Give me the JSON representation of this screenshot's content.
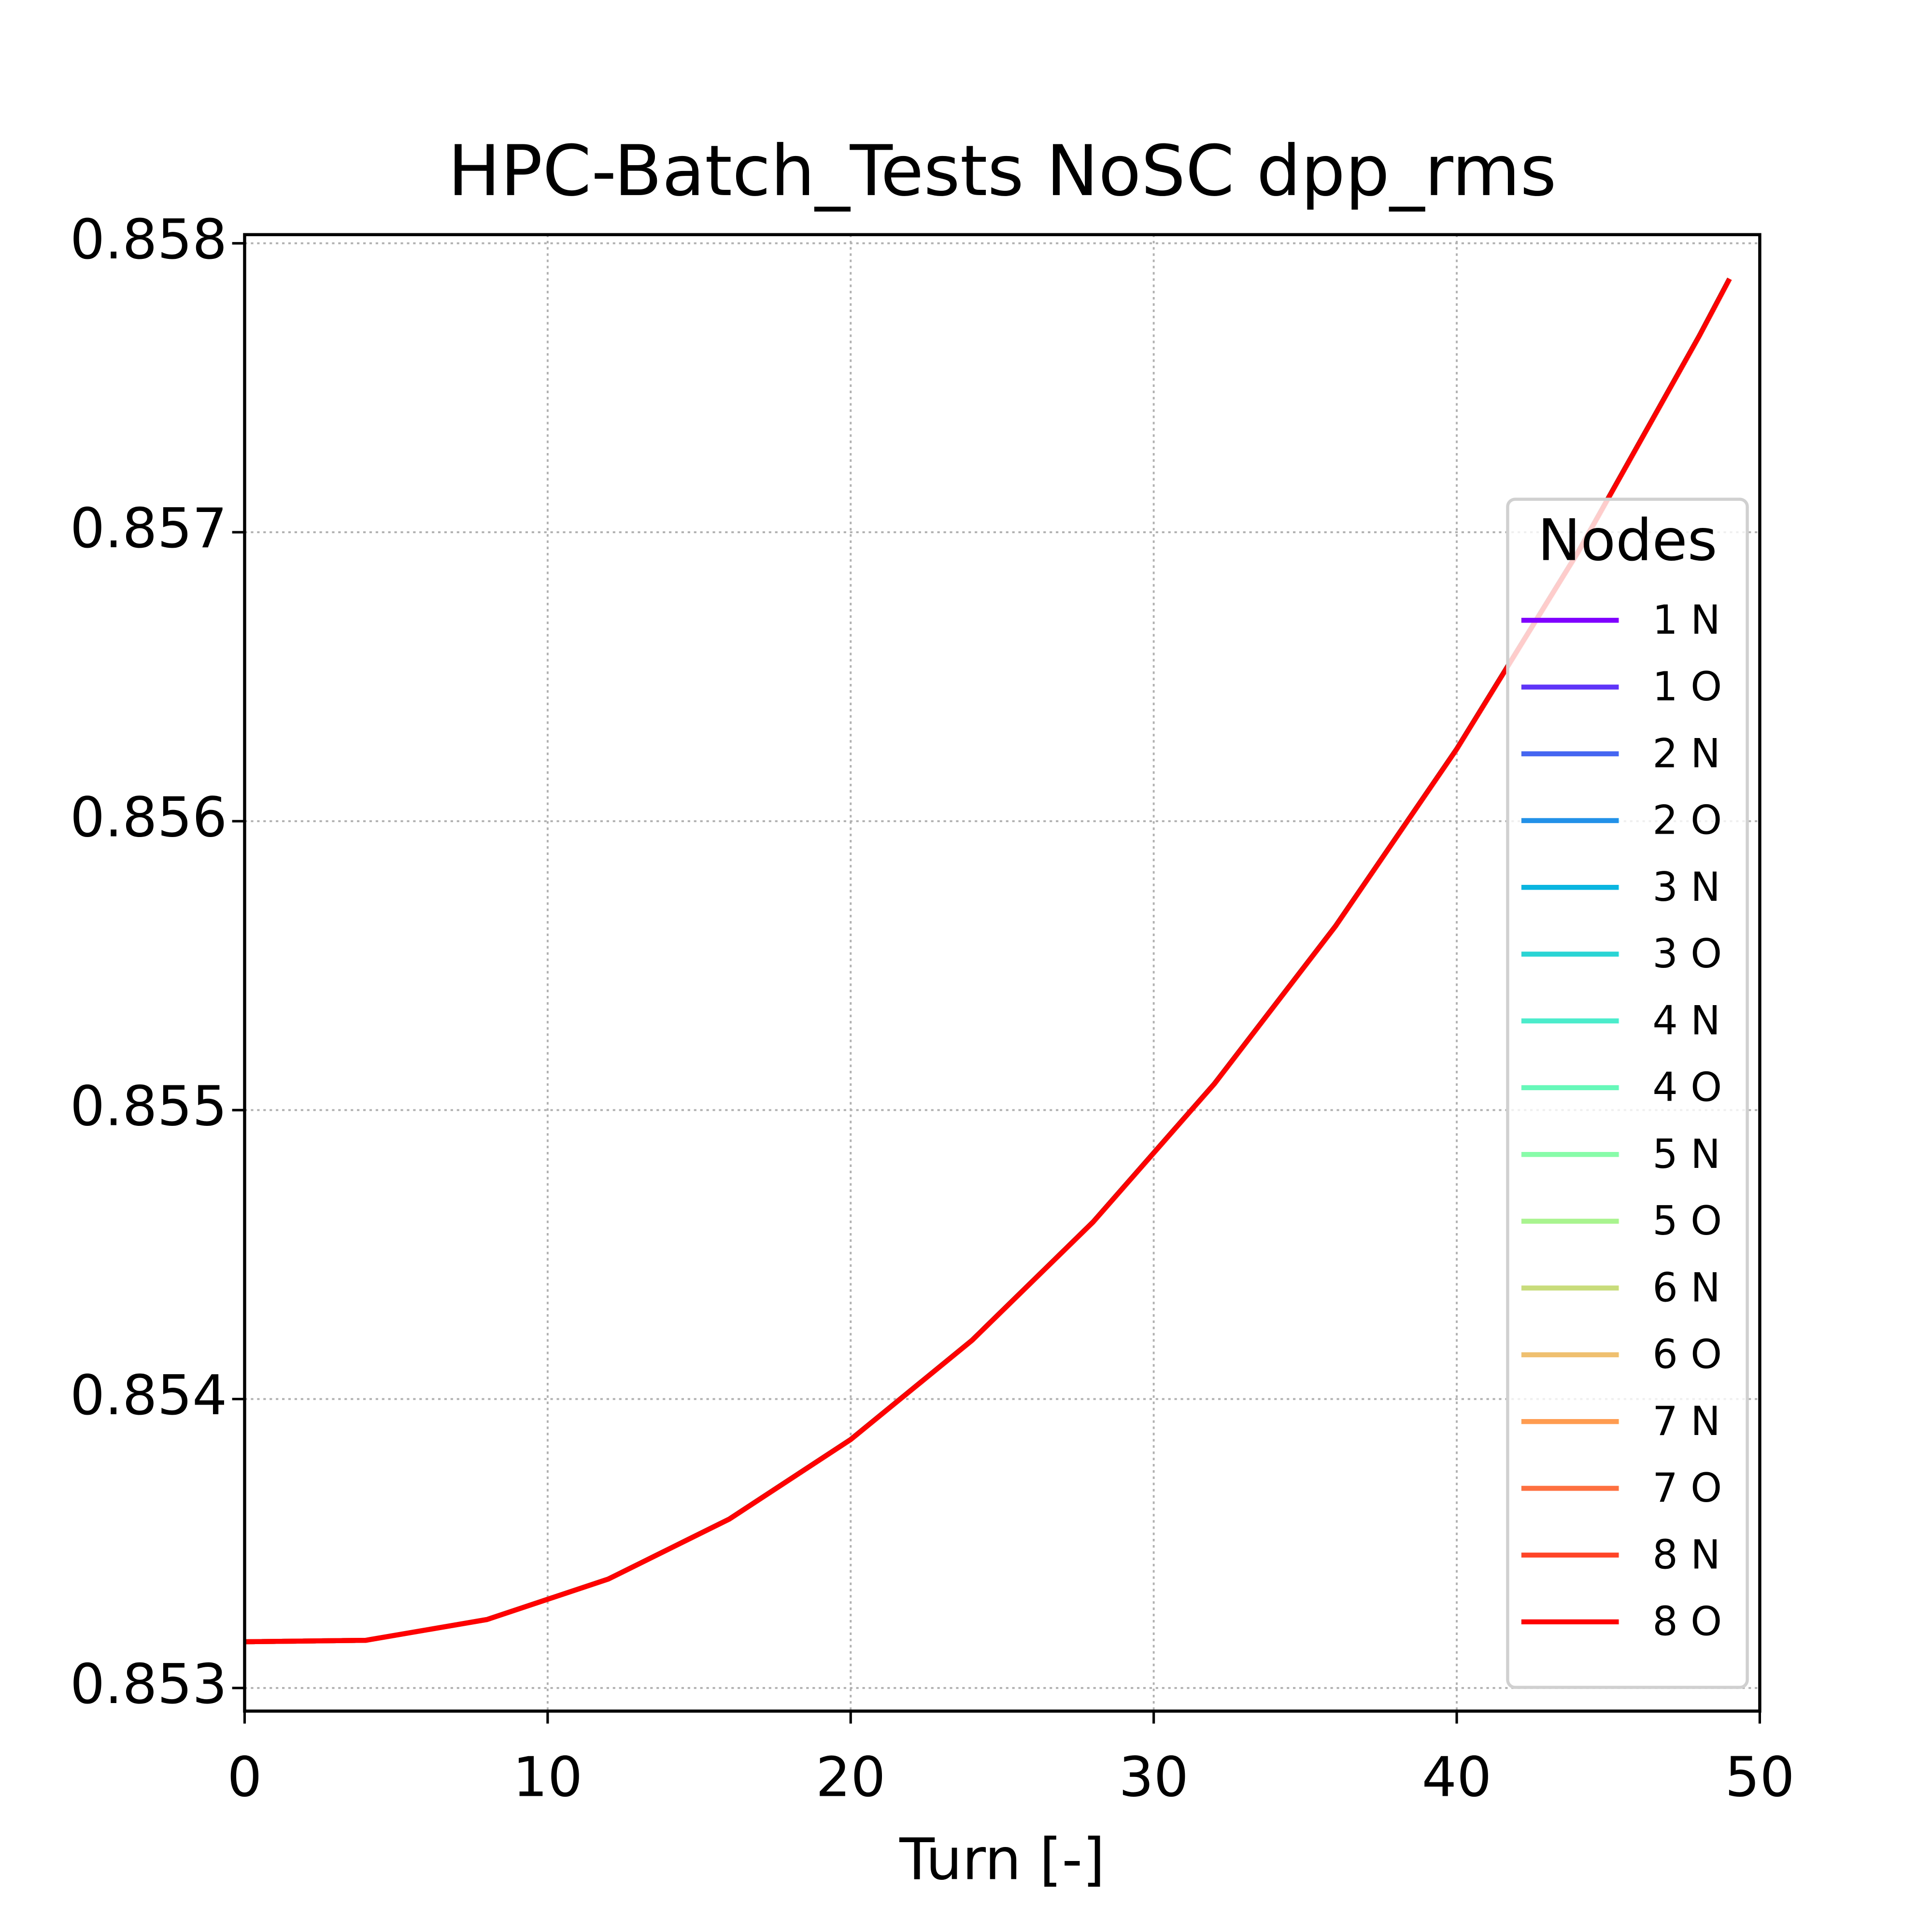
{
  "chart_data": {
    "type": "line",
    "title": "HPC-Batch_Tests NoSC dpp_rms",
    "x_label": "Turn [-]",
    "x": [
      0,
      4,
      8,
      12,
      16,
      20,
      24,
      28,
      32,
      36,
      40,
      44,
      48,
      49
    ],
    "xlim": [
      0,
      50
    ],
    "xticks": [
      0,
      10,
      20,
      30,
      40,
      50
    ],
    "ylim": [
      0.85292,
      0.85803
    ],
    "yticks": [
      0.853,
      0.854,
      0.855,
      0.856,
      0.857,
      0.858
    ],
    "grid": true,
    "legend_title": "Nodes",
    "legend_loc": "lower right",
    "series": [
      {
        "name": "1 N",
        "color": "#8000ff",
        "values": [
          0.85316,
          0.853165,
          0.853237,
          0.853377,
          0.853585,
          0.85386,
          0.854203,
          0.854613,
          0.855091,
          0.855637,
          0.85625,
          0.856931,
          0.857679,
          0.857877
        ]
      },
      {
        "name": "1 O",
        "color": "#5e35f8",
        "values": [
          0.85316,
          0.853165,
          0.853237,
          0.853377,
          0.853585,
          0.85386,
          0.854203,
          0.854613,
          0.855091,
          0.855637,
          0.85625,
          0.856931,
          0.857679,
          0.857877
        ]
      },
      {
        "name": "2 N",
        "color": "#4466f0",
        "values": [
          0.85316,
          0.853165,
          0.853237,
          0.853377,
          0.853585,
          0.85386,
          0.854203,
          0.854613,
          0.855091,
          0.855637,
          0.85625,
          0.856931,
          0.857679,
          0.857877
        ]
      },
      {
        "name": "2 O",
        "color": "#2491e8",
        "values": [
          0.85316,
          0.853165,
          0.853237,
          0.853377,
          0.853585,
          0.85386,
          0.854203,
          0.854613,
          0.855091,
          0.855637,
          0.85625,
          0.856931,
          0.857679,
          0.857877
        ]
      },
      {
        "name": "3 N",
        "color": "#0ab5e0",
        "values": [
          0.85316,
          0.853165,
          0.853237,
          0.853377,
          0.853585,
          0.85386,
          0.854203,
          0.854613,
          0.855091,
          0.855637,
          0.85625,
          0.856931,
          0.857679,
          0.857877
        ]
      },
      {
        "name": "3 O",
        "color": "#2ad4d4",
        "values": [
          0.85316,
          0.853165,
          0.853237,
          0.853377,
          0.853585,
          0.85386,
          0.854203,
          0.854613,
          0.855091,
          0.855637,
          0.85625,
          0.856931,
          0.857679,
          0.857877
        ]
      },
      {
        "name": "4 N",
        "color": "#4aeccc",
        "values": [
          0.85316,
          0.853165,
          0.853237,
          0.853377,
          0.853585,
          0.85386,
          0.854203,
          0.854613,
          0.855091,
          0.855637,
          0.85625,
          0.856931,
          0.857679,
          0.857877
        ]
      },
      {
        "name": "4 O",
        "color": "#66f8b8",
        "values": [
          0.85316,
          0.853165,
          0.853237,
          0.853377,
          0.853585,
          0.85386,
          0.854203,
          0.854613,
          0.855091,
          0.855637,
          0.85625,
          0.856931,
          0.857679,
          0.857877
        ]
      },
      {
        "name": "5 N",
        "color": "#88fca8",
        "values": [
          0.85316,
          0.853165,
          0.853237,
          0.853377,
          0.853585,
          0.85386,
          0.854203,
          0.854613,
          0.855091,
          0.855637,
          0.85625,
          0.856931,
          0.857679,
          0.857877
        ]
      },
      {
        "name": "5 O",
        "color": "#aaf490",
        "values": [
          0.85316,
          0.853165,
          0.853237,
          0.853377,
          0.853585,
          0.85386,
          0.854203,
          0.854613,
          0.855091,
          0.855637,
          0.85625,
          0.856931,
          0.857679,
          0.857877
        ]
      },
      {
        "name": "6 N",
        "color": "#c8dc7c",
        "values": [
          0.85316,
          0.853165,
          0.853237,
          0.853377,
          0.853585,
          0.85386,
          0.854203,
          0.854613,
          0.855091,
          0.855637,
          0.85625,
          0.856931,
          0.857679,
          0.857877
        ]
      },
      {
        "name": "6 O",
        "color": "#eec070",
        "values": [
          0.85316,
          0.853165,
          0.853237,
          0.853377,
          0.853585,
          0.85386,
          0.854203,
          0.854613,
          0.855091,
          0.855637,
          0.85625,
          0.856931,
          0.857679,
          0.857877
        ]
      },
      {
        "name": "7 N",
        "color": "#ff9c50",
        "values": [
          0.85316,
          0.853165,
          0.853237,
          0.853377,
          0.853585,
          0.85386,
          0.854203,
          0.854613,
          0.855091,
          0.855637,
          0.85625,
          0.856931,
          0.857679,
          0.857877
        ]
      },
      {
        "name": "7 O",
        "color": "#ff7040",
        "values": [
          0.85316,
          0.853165,
          0.853237,
          0.853377,
          0.853585,
          0.85386,
          0.854203,
          0.854613,
          0.855091,
          0.855637,
          0.85625,
          0.856931,
          0.857679,
          0.857877
        ]
      },
      {
        "name": "8 N",
        "color": "#ff4428",
        "values": [
          0.85316,
          0.853165,
          0.853237,
          0.853377,
          0.853585,
          0.85386,
          0.854203,
          0.854613,
          0.855091,
          0.855637,
          0.85625,
          0.856931,
          0.857679,
          0.857877
        ]
      },
      {
        "name": "8 O",
        "color": "#ff0000",
        "values": [
          0.85316,
          0.853165,
          0.853237,
          0.853377,
          0.853585,
          0.85386,
          0.854203,
          0.854613,
          0.855091,
          0.855637,
          0.85625,
          0.856931,
          0.857679,
          0.857877
        ]
      }
    ]
  }
}
